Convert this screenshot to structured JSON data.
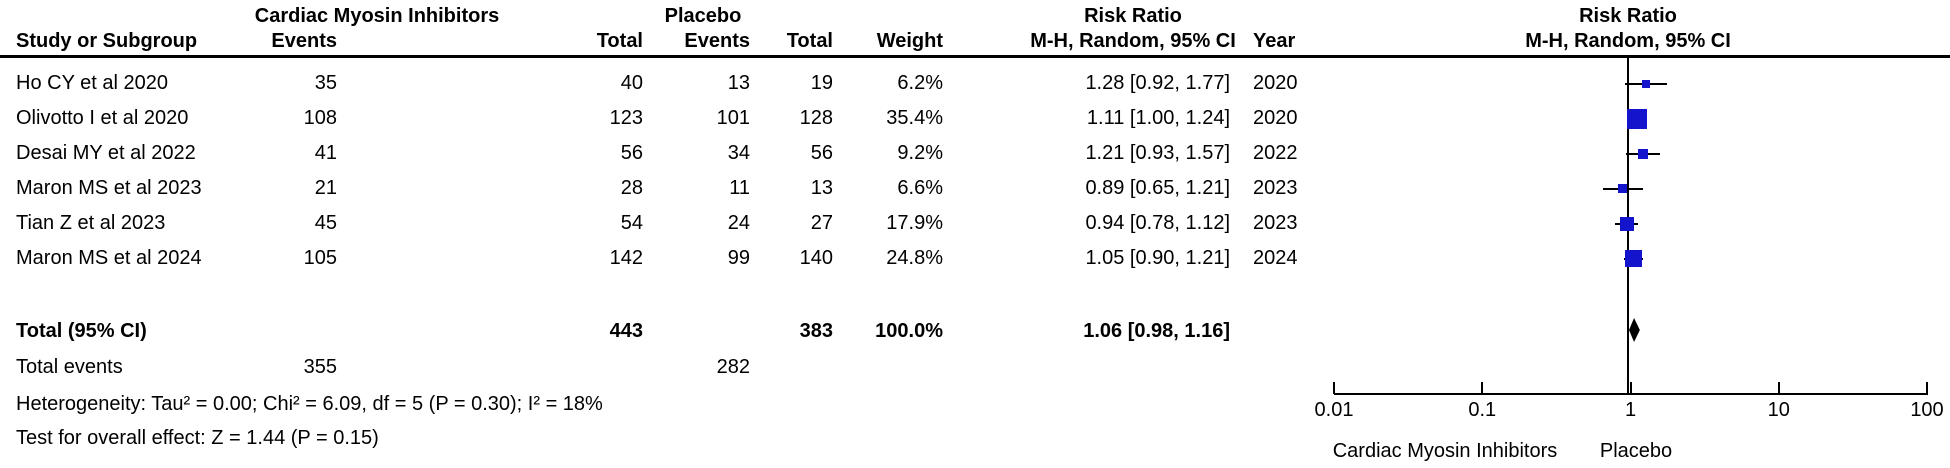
{
  "colors": {
    "marker_blue": "#1414CC",
    "diamond_black": "#000000",
    "line_black": "#000000",
    "background": "#FFFFFF"
  },
  "chart_data": {
    "type": "forest",
    "scale": "log10",
    "effect_measure": "Risk Ratio",
    "pooling_method": "M-H, Random, 95% CI",
    "headers": {
      "group_experimental": "Cardiac Myosin Inhibitors",
      "group_control": "Placebo",
      "rr_col_title": "Risk Ratio",
      "rr_plot_title": "Risk Ratio",
      "study": "Study or Subgroup",
      "events": "Events",
      "total": "Total",
      "events2": "Events",
      "total2": "Total",
      "weight": "Weight",
      "mh_col": "M-H, Random, 95% CI",
      "year": "Year",
      "mh_plot": "M-H, Random, 95% CI"
    },
    "studies": [
      {
        "name": "Ho CY et al 2020",
        "exp_events": 35,
        "exp_total": 40,
        "ctrl_events": 13,
        "ctrl_total": 19,
        "weight": "6.2%",
        "weight_value": 6.2,
        "rr_text": "1.28 [0.92, 1.77]",
        "rr": 1.28,
        "ci_low": 0.92,
        "ci_high": 1.77,
        "year": 2020
      },
      {
        "name": "Olivotto I et al 2020",
        "exp_events": 108,
        "exp_total": 123,
        "ctrl_events": 101,
        "ctrl_total": 128,
        "weight": "35.4%",
        "weight_value": 35.4,
        "rr_text": "1.11 [1.00, 1.24]",
        "rr": 1.11,
        "ci_low": 1.0,
        "ci_high": 1.24,
        "year": 2020
      },
      {
        "name": "Desai MY et al 2022",
        "exp_events": 41,
        "exp_total": 56,
        "ctrl_events": 34,
        "ctrl_total": 56,
        "weight": "9.2%",
        "weight_value": 9.2,
        "rr_text": "1.21 [0.93, 1.57]",
        "rr": 1.21,
        "ci_low": 0.93,
        "ci_high": 1.57,
        "year": 2022
      },
      {
        "name": "Maron MS et al 2023",
        "exp_events": 21,
        "exp_total": 28,
        "ctrl_events": 11,
        "ctrl_total": 13,
        "weight": "6.6%",
        "weight_value": 6.6,
        "rr_text": "0.89 [0.65, 1.21]",
        "rr": 0.89,
        "ci_low": 0.65,
        "ci_high": 1.21,
        "year": 2023
      },
      {
        "name": "Tian Z et al 2023",
        "exp_events": 45,
        "exp_total": 54,
        "ctrl_events": 24,
        "ctrl_total": 27,
        "weight": "17.9%",
        "weight_value": 17.9,
        "rr_text": "0.94 [0.78, 1.12]",
        "rr": 0.94,
        "ci_low": 0.78,
        "ci_high": 1.12,
        "year": 2023
      },
      {
        "name": "Maron MS et al 2024",
        "exp_events": 105,
        "exp_total": 142,
        "ctrl_events": 99,
        "ctrl_total": 140,
        "weight": "24.8%",
        "weight_value": 24.8,
        "rr_text": "1.05 [0.90, 1.21]",
        "rr": 1.05,
        "ci_low": 0.9,
        "ci_high": 1.21,
        "year": 2024
      }
    ],
    "total": {
      "label": "Total (95% CI)",
      "exp_total": 443,
      "ctrl_total": 383,
      "weight": "100.0%",
      "rr_text": "1.06 [0.98, 1.16]",
      "rr": 1.06,
      "ci_low": 0.98,
      "ci_high": 1.16
    },
    "total_events": {
      "label": "Total events",
      "exp": 355,
      "ctrl": 282
    },
    "heterogeneity": "Heterogeneity: Tau² = 0.00; Chi² = 6.09, df = 5 (P = 0.30); I² = 18%",
    "overall_effect": "Test for overall effect: Z = 1.44 (P = 0.15)",
    "x_axis": {
      "range": [
        0.01,
        100
      ],
      "null_line": 1,
      "ticks": [
        0.01,
        0.1,
        1,
        10,
        100
      ],
      "tick_labels": [
        "0.01",
        "0.1",
        "1",
        "10",
        "100"
      ]
    },
    "footer_labels": {
      "left": "Cardiac Myosin Inhibitors",
      "right": "Placebo"
    }
  }
}
